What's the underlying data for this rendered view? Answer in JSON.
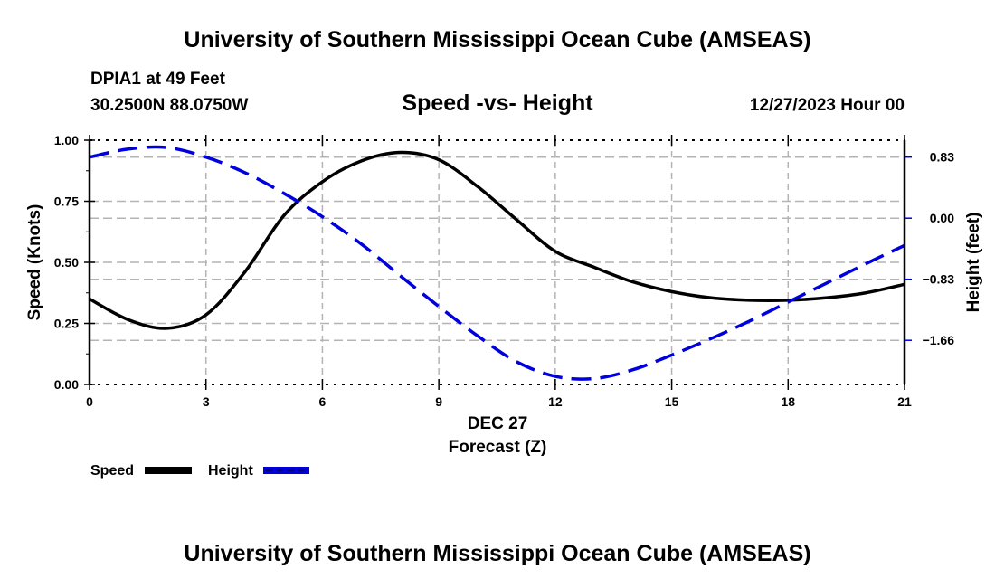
{
  "header": {
    "main_title": "University of Southern Mississippi Ocean Cube (AMSEAS)",
    "station": "DPIA1 at 49 Feet",
    "coords": "30.2500N  88.0750W",
    "subtitle": "Speed -vs- Height",
    "datetime": "12/27/2023 Hour 00"
  },
  "footer": {
    "title": "University of Southern Mississippi Ocean Cube (AMSEAS)"
  },
  "chart_data": {
    "type": "line",
    "title": "Speed -vs- Height",
    "xlabel": "Forecast (Z)",
    "xlabel_date": "DEC 27",
    "ylabel": "Speed (Knots)",
    "y2label": "Height (feet)",
    "xlim": [
      0,
      21
    ],
    "ylim": [
      0,
      1.0
    ],
    "y2lim": [
      -2.26,
      1.06
    ],
    "x_ticks": [
      0,
      3,
      6,
      9,
      12,
      15,
      18,
      21
    ],
    "x_tick_labels": [
      "0",
      "3",
      "6",
      "9",
      "12",
      "15",
      "18",
      "21"
    ],
    "y_ticks": [
      0,
      0.25,
      0.5,
      0.75,
      1.0
    ],
    "y_tick_labels": [
      "0.00",
      "0.25",
      "0.50",
      "0.75",
      "1.00"
    ],
    "y2_ticks": [
      0.83,
      0.0,
      -0.83,
      -1.66
    ],
    "y2_tick_labels": [
      "0.83",
      "0.00",
      "−0.83",
      "−1.66"
    ],
    "grid": true,
    "legend": "bottom-left",
    "colors": {
      "speed": "#000000",
      "height": "#0000dd",
      "grid": "#b4b4b4"
    },
    "series": [
      {
        "name": "Speed",
        "axis": "left",
        "style": "solid",
        "x": [
          0,
          1,
          2,
          3,
          4,
          5,
          6,
          7,
          8,
          9,
          10,
          11,
          12,
          13,
          14,
          15,
          16,
          17,
          18,
          19,
          20,
          21
        ],
        "values": [
          0.35,
          0.265,
          0.23,
          0.285,
          0.46,
          0.69,
          0.83,
          0.915,
          0.95,
          0.92,
          0.81,
          0.675,
          0.545,
          0.48,
          0.42,
          0.38,
          0.355,
          0.345,
          0.345,
          0.355,
          0.375,
          0.41
        ]
      },
      {
        "name": "Height",
        "axis": "right",
        "style": "dashed",
        "x": [
          0,
          1,
          2,
          3,
          4,
          5,
          6,
          7,
          8,
          9,
          10,
          11,
          12,
          13,
          14,
          15,
          16,
          17,
          18,
          19,
          20,
          21
        ],
        "values": [
          0.83,
          0.94,
          0.96,
          0.83,
          0.62,
          0.34,
          0.02,
          -0.35,
          -0.78,
          -1.2,
          -1.6,
          -1.95,
          -2.15,
          -2.18,
          -2.06,
          -1.86,
          -1.64,
          -1.4,
          -1.14,
          -0.88,
          -0.62,
          -0.37
        ]
      }
    ]
  }
}
